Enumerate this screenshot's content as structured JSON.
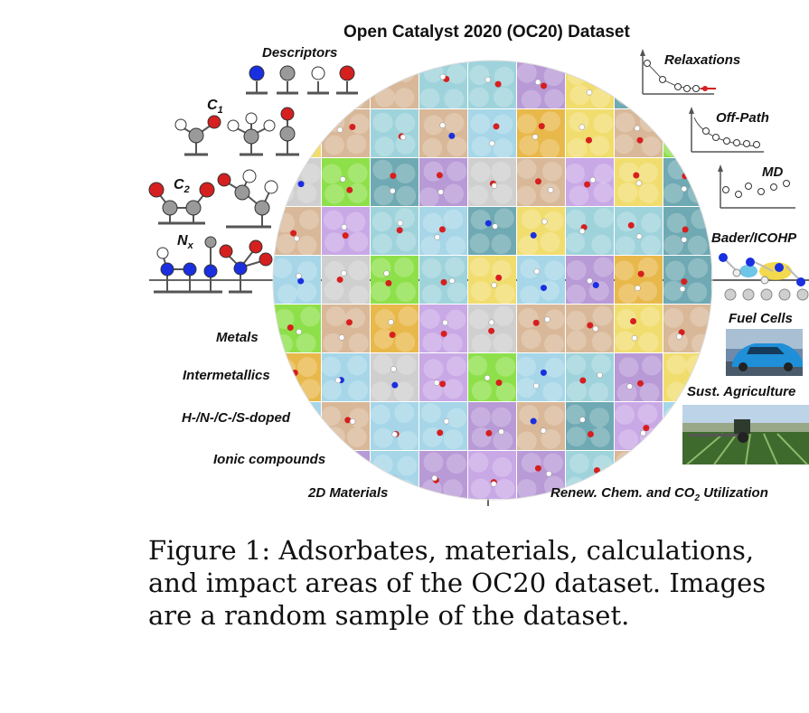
{
  "figure": {
    "title": "Open Catalyst 2020 (OC20) Dataset",
    "left_labels": {
      "descriptors": "Descriptors",
      "c1": "C",
      "c1_sub": "1",
      "c2": "C",
      "c2_sub": "2",
      "nx": "N",
      "nx_sub": "x"
    },
    "materials": [
      "Metals",
      "Intermetallics",
      "H-/N-/C-/S-doped",
      "Ionic compounds",
      "2D Materials"
    ],
    "calculations": [
      "Relaxations",
      "Off-Path",
      "MD",
      "Bader/ICOHP"
    ],
    "applications": {
      "fuel_cells": "Fuel Cells",
      "agriculture": "Sust. Agriculture",
      "renew_prefix": "Renew. Chem. and CO",
      "renew_sub": "2",
      "renew_suffix": " Utilization"
    },
    "colors": {
      "oxygen": "#d61f1f",
      "nitrogen": "#1a2fe0",
      "carbon": "#9a9a9a",
      "hydrogen": "#ffffff",
      "tile_palette": [
        "#9fd3dc",
        "#c9a8e6",
        "#f1dd6e",
        "#8ee04a",
        "#d8b898",
        "#6fa9b3",
        "#e8b84a",
        "#b89ad6",
        "#cfcfcf",
        "#a6d6e8"
      ]
    }
  },
  "caption": {
    "line1": "Figure 1:  Adsorbates, materials, calculations,",
    "line2": "and impact areas of the OC20 dataset. Images",
    "line3": "are a random sample of the dataset."
  }
}
